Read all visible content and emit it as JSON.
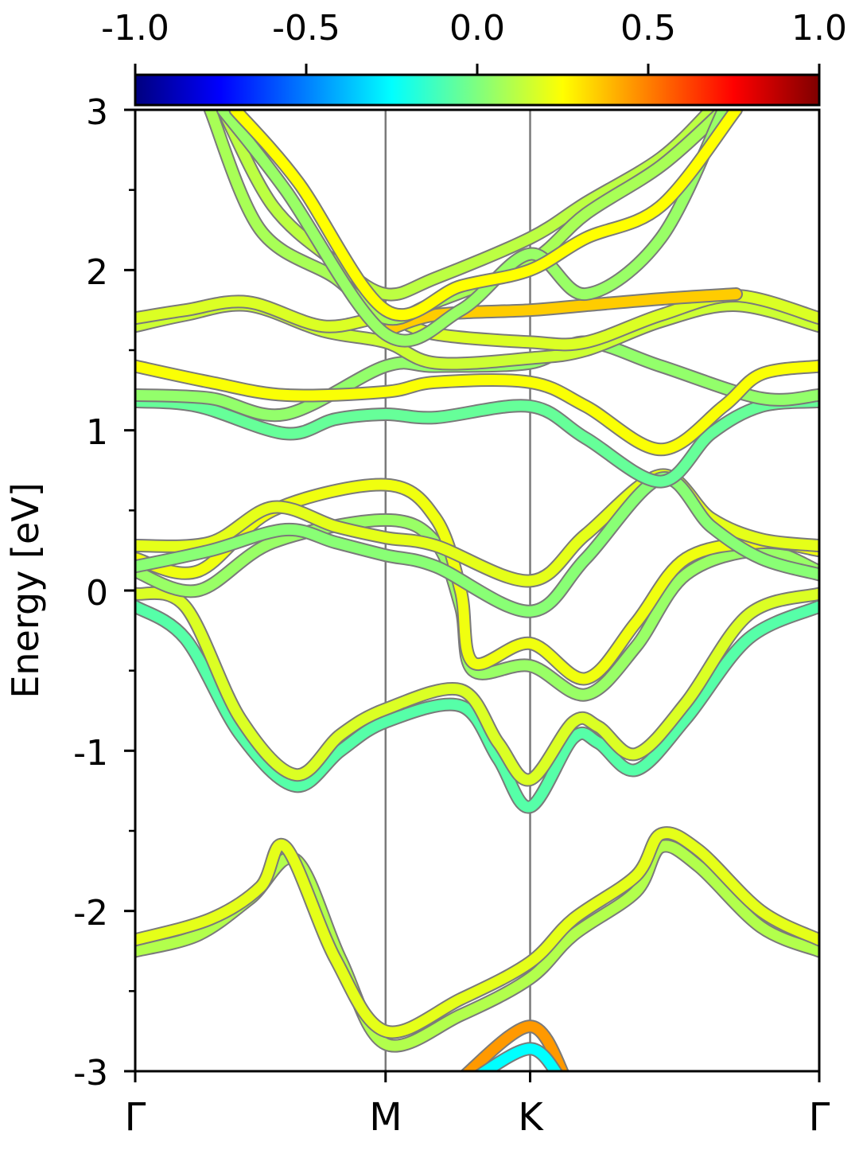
{
  "chart_data": {
    "type": "line",
    "title": "",
    "xlabel": "",
    "ylabel": "Energy [eV]",
    "ylim": [
      -3,
      3
    ],
    "y_ticks": [
      "3",
      "2",
      "1",
      "0",
      "-1",
      "-2",
      "-3"
    ],
    "y_minor_ticks": [
      -2.5,
      -1.5,
      -0.5,
      0.5,
      1.5,
      2.5
    ],
    "x_ticks": [
      {
        "label": "Γ",
        "pos": 0.0
      },
      {
        "label": "M",
        "pos": 1.0
      },
      {
        "label": "K",
        "pos": 1.5774
      },
      {
        "label": "Γ",
        "pos": 2.7321
      }
    ],
    "vertical_lines_at": [
      "M",
      "K"
    ],
    "colorbar": {
      "min": -1.0,
      "max": 1.0,
      "tick_labels": [
        "-1.0",
        "-0.5",
        "0.0",
        "0.5",
        "1.0"
      ],
      "colormap": "jet",
      "position": "top"
    },
    "colormap_stops": [
      "#00007f",
      "#0000ff",
      "#007fff",
      "#00ffff",
      "#7fff7f",
      "#ffff00",
      "#ff7f00",
      "#ff0000",
      "#7f0000"
    ],
    "band_edge_color": "#7a7a7a",
    "grid": false,
    "legend": "none",
    "series": [
      {
        "color_value": 0.1,
        "points": [
          [
            0.0,
            -2.25
          ],
          [
            0.25,
            -2.15
          ],
          [
            0.46,
            -1.92
          ],
          [
            0.64,
            -1.68
          ],
          [
            0.82,
            -2.3
          ],
          [
            1.0,
            -2.83
          ],
          [
            1.3,
            -2.65
          ],
          [
            1.5773,
            -2.42
          ],
          [
            1.75,
            -2.15
          ],
          [
            2.0,
            -1.88
          ],
          [
            2.1,
            -1.6
          ],
          [
            2.25,
            -1.72
          ],
          [
            2.5,
            -2.1
          ],
          [
            2.7321,
            -2.25
          ]
        ]
      },
      {
        "color_value": 0.2,
        "points": [
          [
            0.0,
            -2.18
          ],
          [
            0.3,
            -2.05
          ],
          [
            0.5,
            -1.85
          ],
          [
            0.6,
            -1.6
          ],
          [
            0.8,
            -2.3
          ],
          [
            1.0,
            -2.75
          ],
          [
            1.3,
            -2.55
          ],
          [
            1.5773,
            -2.32
          ],
          [
            1.75,
            -2.05
          ],
          [
            2.0,
            -1.78
          ],
          [
            2.1,
            -1.52
          ],
          [
            2.25,
            -1.62
          ],
          [
            2.5,
            -2.0
          ],
          [
            2.7321,
            -2.18
          ]
        ]
      },
      {
        "color_value": -0.08,
        "points": [
          [
            0.0,
            -0.1
          ],
          [
            0.2,
            -0.3
          ],
          [
            0.42,
            -0.9
          ],
          [
            0.64,
            -1.22
          ],
          [
            0.82,
            -1.0
          ],
          [
            1.0,
            -0.82
          ],
          [
            1.3,
            -0.72
          ],
          [
            1.45,
            -1.05
          ],
          [
            1.5773,
            -1.35
          ],
          [
            1.75,
            -0.92
          ],
          [
            1.85,
            -0.95
          ],
          [
            2.0,
            -1.12
          ],
          [
            2.2,
            -0.8
          ],
          [
            2.45,
            -0.3
          ],
          [
            2.7321,
            -0.1
          ]
        ]
      },
      {
        "color_value": 0.18,
        "points": [
          [
            0.0,
            -0.02
          ],
          [
            0.2,
            -0.1
          ],
          [
            0.42,
            -0.8
          ],
          [
            0.64,
            -1.15
          ],
          [
            0.82,
            -0.9
          ],
          [
            1.0,
            -0.74
          ],
          [
            1.3,
            -0.62
          ],
          [
            1.45,
            -0.95
          ],
          [
            1.5773,
            -1.18
          ],
          [
            1.75,
            -0.82
          ],
          [
            1.85,
            -0.85
          ],
          [
            2.0,
            -1.02
          ],
          [
            2.2,
            -0.7
          ],
          [
            2.45,
            -0.15
          ],
          [
            2.7321,
            -0.02
          ]
        ]
      },
      {
        "color_value": 0.05,
        "points": [
          [
            0.0,
            0.12
          ],
          [
            0.25,
            0.0
          ],
          [
            0.55,
            0.3
          ],
          [
            1.0,
            0.44
          ],
          [
            1.2,
            0.3
          ],
          [
            1.3,
            -0.1
          ],
          [
            1.35,
            -0.5
          ],
          [
            1.5773,
            -0.47
          ],
          [
            1.8,
            -0.65
          ],
          [
            2.0,
            -0.35
          ],
          [
            2.2,
            0.1
          ],
          [
            2.5,
            0.25
          ],
          [
            2.7321,
            0.12
          ]
        ]
      },
      {
        "color_value": 0.22,
        "points": [
          [
            0.0,
            0.2
          ],
          [
            0.25,
            0.12
          ],
          [
            0.55,
            0.5
          ],
          [
            1.0,
            0.66
          ],
          [
            1.2,
            0.45
          ],
          [
            1.3,
            -0.0
          ],
          [
            1.35,
            -0.45
          ],
          [
            1.5773,
            -0.33
          ],
          [
            1.8,
            -0.55
          ],
          [
            2.0,
            -0.2
          ],
          [
            2.2,
            0.2
          ],
          [
            2.5,
            0.3
          ],
          [
            2.7321,
            0.25
          ]
        ]
      },
      {
        "color_value": 0.2,
        "points": [
          [
            0.0,
            0.28
          ],
          [
            0.3,
            0.3
          ],
          [
            0.55,
            0.52
          ],
          [
            0.8,
            0.4
          ],
          [
            1.0,
            0.33
          ],
          [
            1.2,
            0.28
          ],
          [
            1.5773,
            0.06
          ],
          [
            1.8,
            0.35
          ],
          [
            2.1,
            0.72
          ],
          [
            2.3,
            0.45
          ],
          [
            2.5,
            0.32
          ],
          [
            2.7321,
            0.28
          ]
        ]
      },
      {
        "color_value": 0.02,
        "points": [
          [
            0.0,
            0.15
          ],
          [
            0.3,
            0.25
          ],
          [
            0.6,
            0.38
          ],
          [
            0.8,
            0.3
          ],
          [
            1.0,
            0.22
          ],
          [
            1.2,
            0.15
          ],
          [
            1.5773,
            -0.13
          ],
          [
            1.8,
            0.2
          ],
          [
            2.1,
            0.7
          ],
          [
            2.3,
            0.4
          ],
          [
            2.5,
            0.2
          ],
          [
            2.7321,
            0.1
          ]
        ]
      },
      {
        "color_value": -0.05,
        "points": [
          [
            0.0,
            1.18
          ],
          [
            0.25,
            1.15
          ],
          [
            0.6,
            0.98
          ],
          [
            0.8,
            1.07
          ],
          [
            1.0,
            1.1
          ],
          [
            1.2,
            1.08
          ],
          [
            1.5773,
            1.15
          ],
          [
            1.8,
            0.95
          ],
          [
            2.1,
            0.68
          ],
          [
            2.3,
            0.98
          ],
          [
            2.5,
            1.15
          ],
          [
            2.7321,
            1.18
          ]
        ]
      },
      {
        "color_value": 0.04,
        "points": [
          [
            0.0,
            1.22
          ],
          [
            0.3,
            1.2
          ],
          [
            0.6,
            1.1
          ],
          [
            1.0,
            1.4
          ],
          [
            1.2,
            1.4
          ],
          [
            1.5773,
            1.42
          ],
          [
            1.8,
            1.55
          ],
          [
            2.1,
            1.4
          ],
          [
            2.5,
            1.2
          ],
          [
            2.7321,
            1.22
          ]
        ]
      },
      {
        "color_value": 0.24,
        "points": [
          [
            0.0,
            1.4
          ],
          [
            0.3,
            1.3
          ],
          [
            0.6,
            1.22
          ],
          [
            1.0,
            1.24
          ],
          [
            1.2,
            1.3
          ],
          [
            1.5773,
            1.3
          ],
          [
            1.8,
            1.15
          ],
          [
            2.1,
            0.88
          ],
          [
            2.35,
            1.15
          ],
          [
            2.5,
            1.35
          ],
          [
            2.7321,
            1.4
          ]
        ]
      },
      {
        "color_value": 0.15,
        "points": [
          [
            0.0,
            1.65
          ],
          [
            0.2,
            1.72
          ],
          [
            0.45,
            1.78
          ],
          [
            0.75,
            1.62
          ],
          [
            1.0,
            1.55
          ],
          [
            1.2,
            1.42
          ],
          [
            1.5773,
            1.45
          ],
          [
            1.8,
            1.5
          ],
          [
            2.1,
            1.68
          ],
          [
            2.4,
            1.78
          ],
          [
            2.7321,
            1.65
          ]
        ]
      },
      {
        "color_value": 0.18,
        "points": [
          [
            0.0,
            1.7
          ],
          [
            0.2,
            1.75
          ],
          [
            0.45,
            1.8
          ],
          [
            0.75,
            1.65
          ],
          [
            1.0,
            1.7
          ],
          [
            1.2,
            1.6
          ],
          [
            1.5773,
            1.55
          ],
          [
            1.8,
            1.55
          ],
          [
            2.1,
            1.72
          ],
          [
            2.4,
            1.84
          ],
          [
            2.7321,
            1.7
          ]
        ]
      },
      {
        "color_value": 0.35,
        "points": [
          [
            1.0,
            1.62
          ],
          [
            1.2,
            1.72
          ],
          [
            1.5773,
            1.75
          ],
          [
            1.8,
            1.78
          ],
          [
            2.1,
            1.82
          ],
          [
            2.4,
            1.85
          ]
        ]
      },
      {
        "color_value": 0.12,
        "points": [
          [
            0.35,
            3.0
          ],
          [
            0.55,
            2.4
          ],
          [
            0.8,
            2.05
          ],
          [
            1.0,
            1.85
          ],
          [
            1.2,
            1.95
          ],
          [
            1.5773,
            2.2
          ],
          [
            1.8,
            2.42
          ],
          [
            2.1,
            2.7
          ],
          [
            2.3,
            3.0
          ]
        ]
      },
      {
        "color_value": 0.08,
        "points": [
          [
            0.3,
            3.0
          ],
          [
            0.5,
            2.25
          ],
          [
            0.8,
            1.95
          ],
          [
            1.0,
            1.7
          ],
          [
            1.2,
            1.8
          ],
          [
            1.5773,
            2.05
          ],
          [
            1.8,
            2.35
          ],
          [
            2.1,
            2.65
          ],
          [
            2.35,
            3.0
          ]
        ]
      },
      {
        "color_value": 0.05,
        "points": [
          [
            0.35,
            3.0
          ],
          [
            0.6,
            2.5
          ],
          [
            1.0,
            1.6
          ],
          [
            1.3,
            1.75
          ],
          [
            1.5773,
            2.1
          ],
          [
            1.8,
            1.85
          ],
          [
            2.1,
            2.2
          ],
          [
            2.35,
            3.0
          ]
        ]
      },
      {
        "color_value": 0.25,
        "points": [
          [
            0.4,
            3.0
          ],
          [
            0.65,
            2.55
          ],
          [
            1.0,
            1.75
          ],
          [
            1.3,
            1.9
          ],
          [
            1.5773,
            2.0
          ],
          [
            1.8,
            2.2
          ],
          [
            2.1,
            2.4
          ],
          [
            2.4,
            3.0
          ]
        ]
      },
      {
        "color_value": 0.45,
        "points": [
          [
            1.3,
            -3.05
          ],
          [
            1.5773,
            -2.72
          ],
          [
            1.72,
            -3.05
          ]
        ]
      },
      {
        "color_value": -0.25,
        "points": [
          [
            1.35,
            -3.05
          ],
          [
            1.5773,
            -2.86
          ],
          [
            1.7,
            -3.05
          ]
        ]
      }
    ]
  }
}
